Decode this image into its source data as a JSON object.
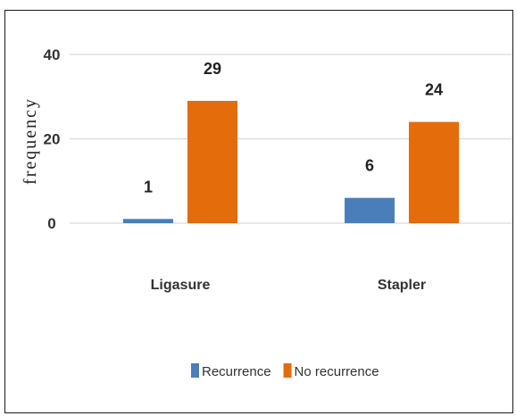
{
  "chart_data": {
    "type": "bar",
    "ylabel": "frequency",
    "xlabel": "",
    "title": "",
    "categories": [
      "Ligasure",
      "Stapler"
    ],
    "ylim": [
      0,
      40
    ],
    "yticks": [
      0,
      20,
      40
    ],
    "grid": true,
    "legend": "bottom",
    "series": [
      {
        "name": "Recurrence",
        "values": [
          1,
          6
        ],
        "color": "#4a7ebb"
      },
      {
        "name": "No recurrence",
        "values": [
          29,
          24
        ],
        "color": "#e46c0a"
      }
    ]
  }
}
